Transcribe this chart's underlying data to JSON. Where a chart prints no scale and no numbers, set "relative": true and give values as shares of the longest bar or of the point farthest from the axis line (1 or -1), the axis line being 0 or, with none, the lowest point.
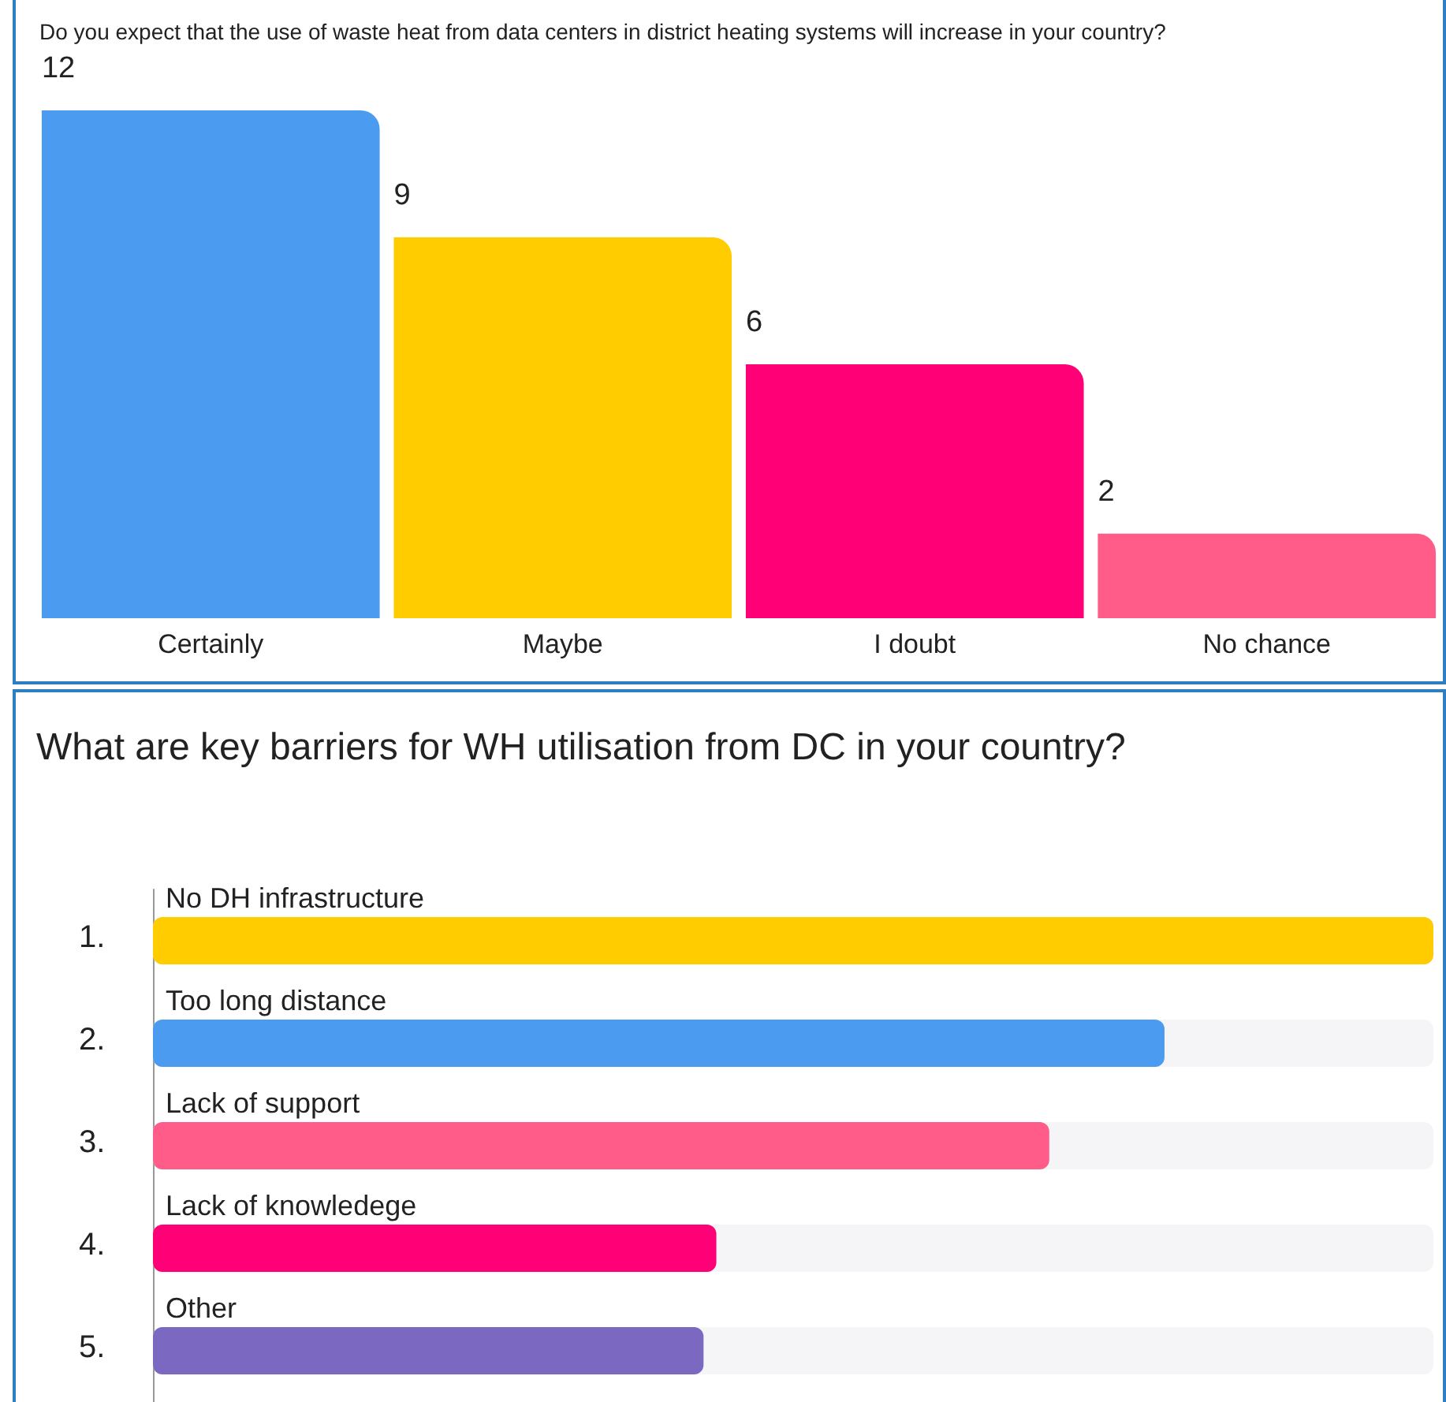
{
  "chart_data": [
    {
      "type": "bar",
      "title": "Do you expect that the use of waste heat from data centers in district heating systems will increase in your country?",
      "categories": [
        "Certainly",
        "Maybe",
        "I doubt",
        "No chance"
      ],
      "values": [
        12,
        9,
        6,
        2
      ],
      "colors": [
        "#4b9bf0",
        "#ffcc00",
        "#ff0077",
        "#ff5c8a"
      ],
      "data_labels": true
    },
    {
      "type": "bar",
      "orientation": "horizontal",
      "title": "What are key barriers for WH utilisation from DC in your country?",
      "categories": [
        "No DH infrastructure",
        "Too long distance",
        "Lack of support",
        "Lack of knowledege",
        "Other"
      ],
      "values": [
        1,
        0.79,
        0.7,
        0.44,
        0.43
      ],
      "colors": [
        "#ffcc00",
        "#4b9bf0",
        "#ff5c8a",
        "#ff0077",
        "#7b68c0"
      ],
      "relative": true,
      "annotations": [
        "1.",
        "2.",
        "3.",
        "4.",
        "5."
      ]
    }
  ]
}
